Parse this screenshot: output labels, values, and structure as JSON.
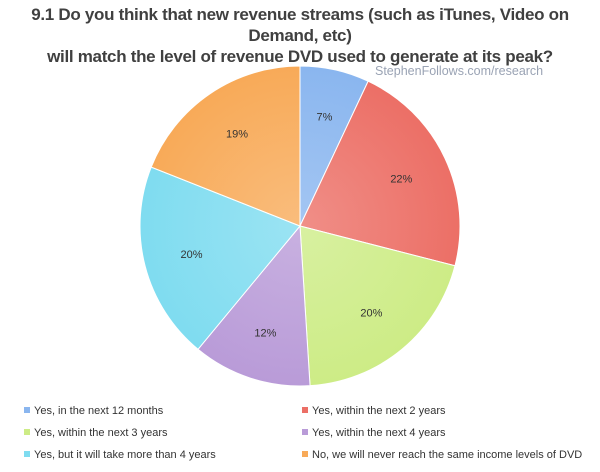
{
  "watermark": "StephenFollows.com/research",
  "chart_data": {
    "type": "pie",
    "title_lines": [
      "9.1 Do you think that new revenue streams (such as iTunes, Video on Demand, etc)",
      "will match the level of revenue DVD used to generate at its peak?"
    ],
    "slices": [
      {
        "label": "Yes, in the next 12 months",
        "value": 7,
        "value_label": "7%",
        "color": "#8ab6ef"
      },
      {
        "label": "Yes, within the next 2 years",
        "value": 22,
        "value_label": "22%",
        "color": "#ec6f66"
      },
      {
        "label": "Yes, within the next 3 years",
        "value": 20,
        "value_label": "20%",
        "color": "#cdec86"
      },
      {
        "label": "Yes, within the next 4 years",
        "value": 12,
        "value_label": "12%",
        "color": "#b99bd8"
      },
      {
        "label": "Yes, but it will take more than 4 years",
        "value": 20,
        "value_label": "20%",
        "color": "#7fdcf0"
      },
      {
        "label": "No, we will never reach the same income levels of DVD",
        "value": 19,
        "value_label": "19%",
        "color": "#f8aa58"
      }
    ],
    "legend_position": "bottom"
  }
}
